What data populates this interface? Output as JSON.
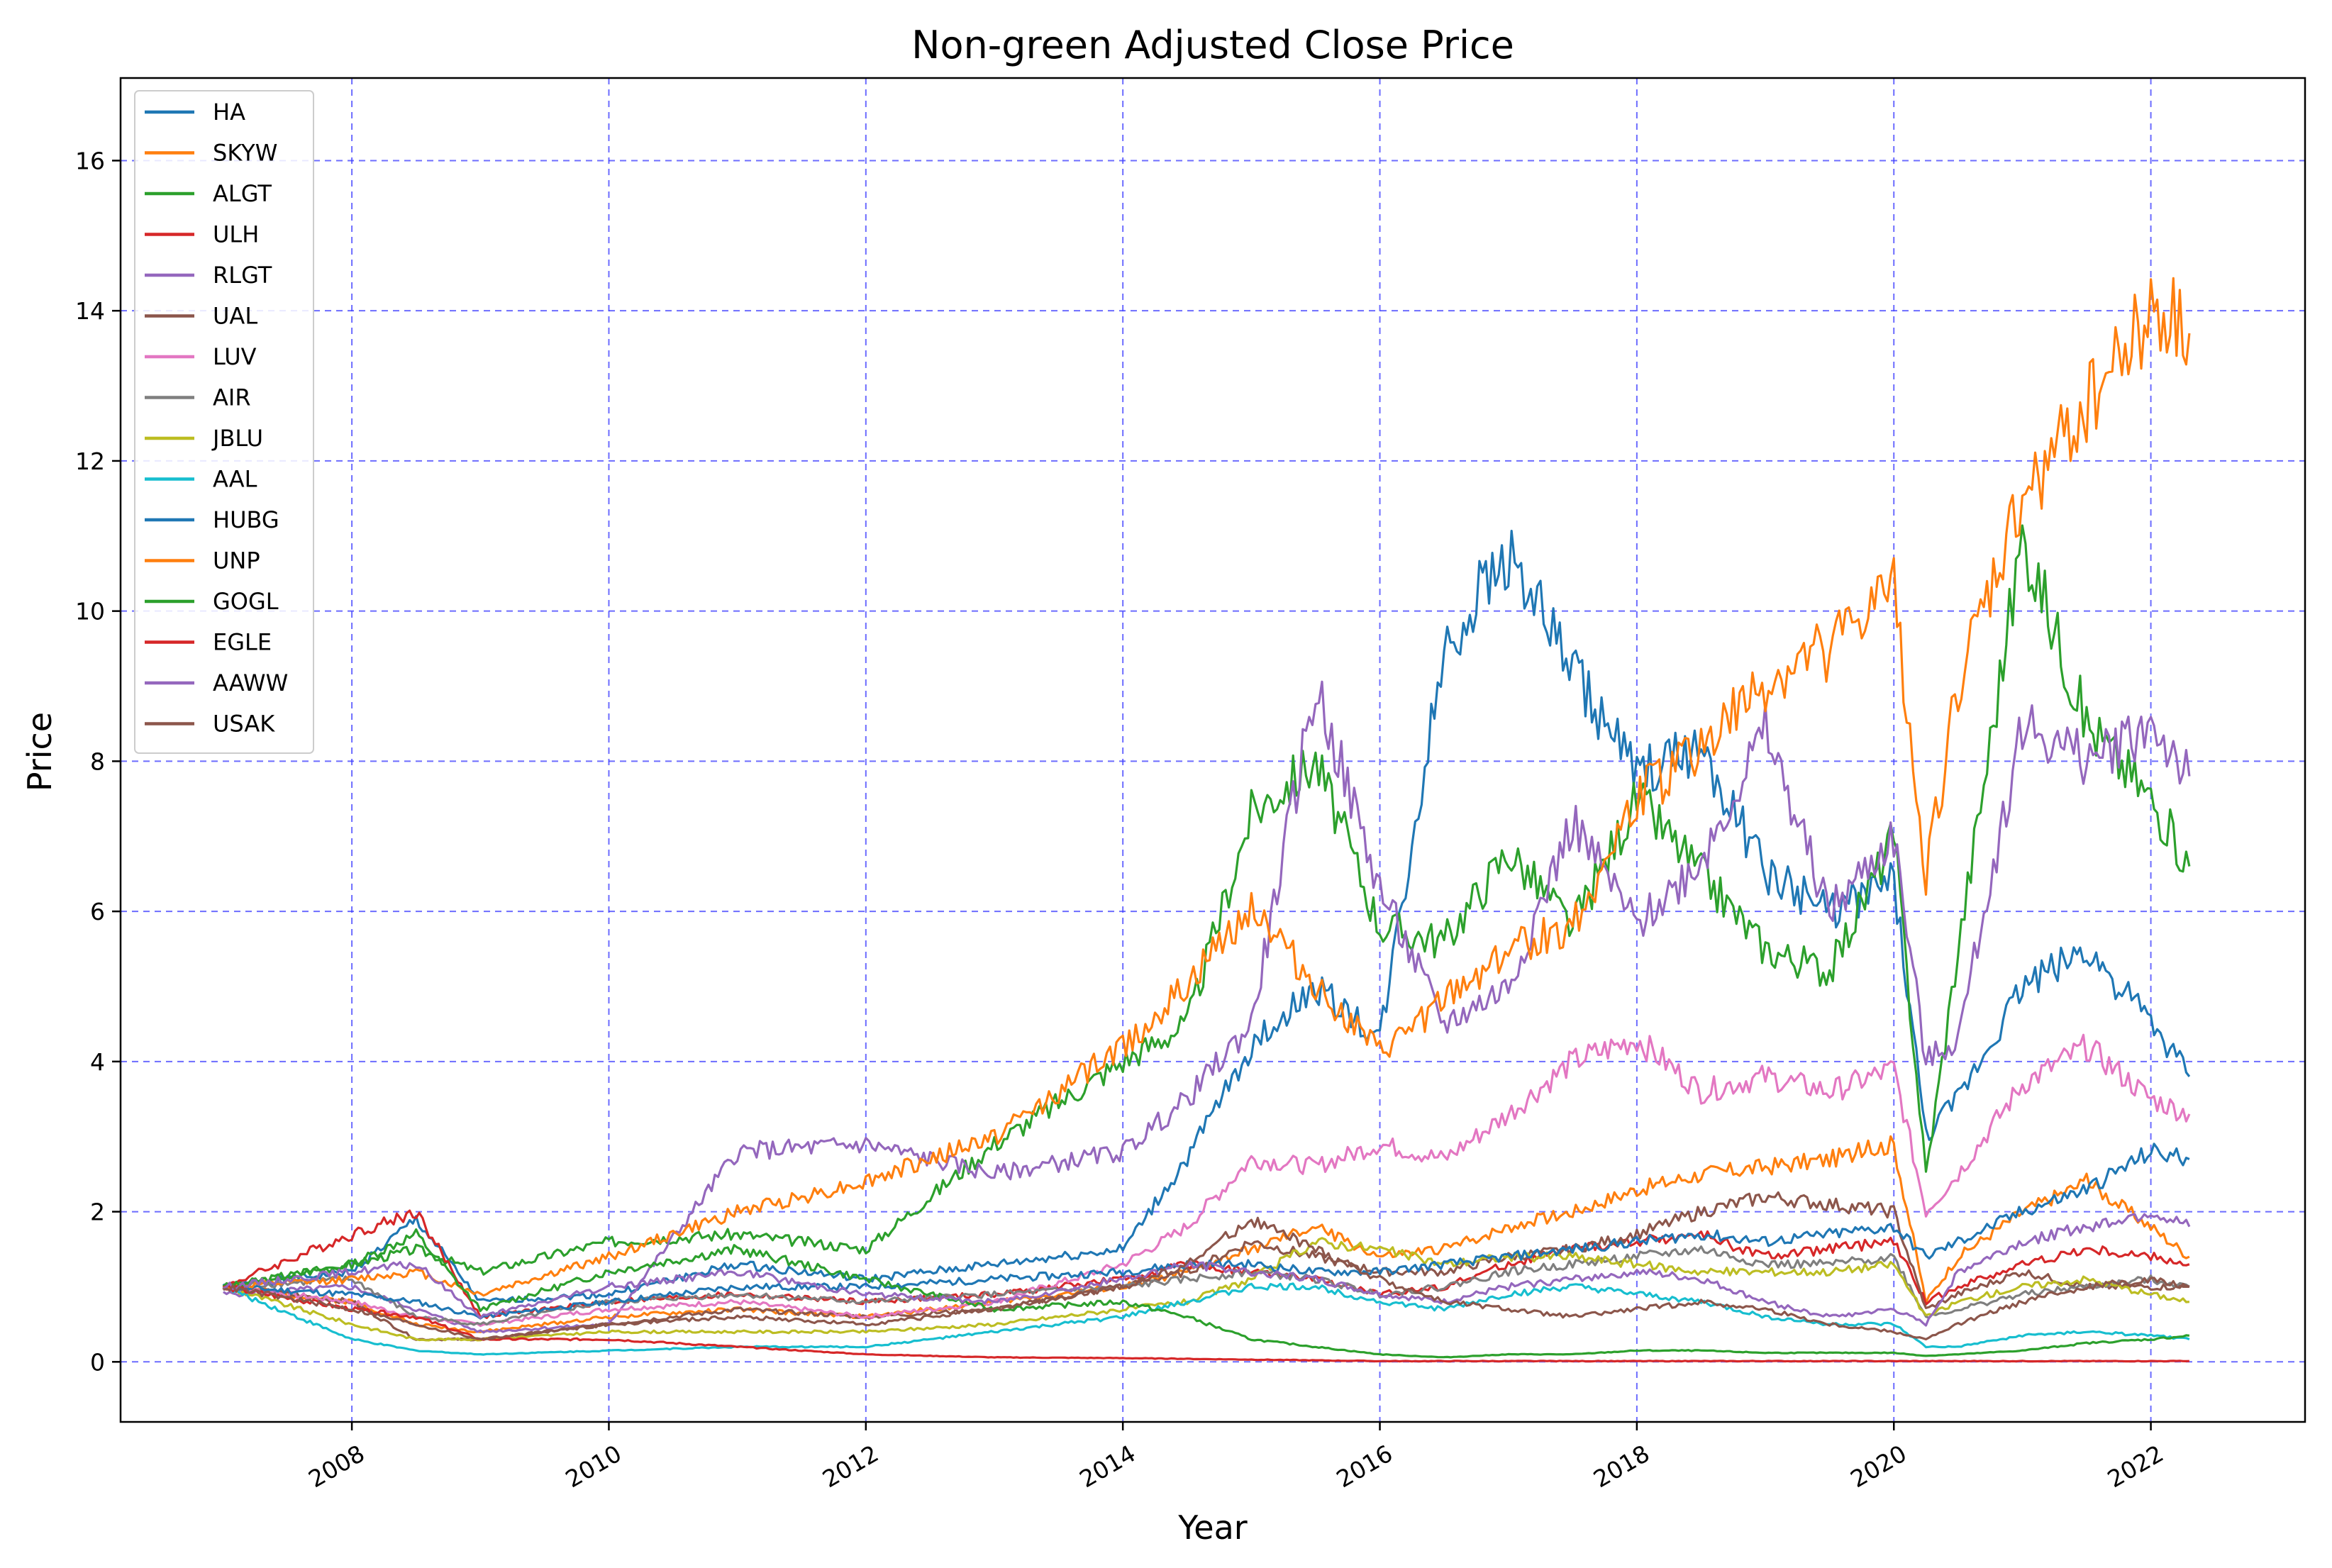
{
  "chart_data": {
    "type": "line",
    "title": "Non-green Adjusted Close Price",
    "xlabel": "Year",
    "ylabel": "Price",
    "xlim": [
      2006.2,
      2023.2
    ],
    "ylim": [
      -0.8,
      17.1
    ],
    "x_ticks": [
      2008,
      2010,
      2012,
      2014,
      2016,
      2018,
      2020,
      2022
    ],
    "y_ticks": [
      0,
      2,
      4,
      6,
      8,
      10,
      12,
      14,
      16
    ],
    "grid": true,
    "legend_position": "upper-left",
    "x_years": [
      2007.0,
      2008.0,
      2008.5,
      2009.0,
      2010.0,
      2011.0,
      2012.0,
      2013.0,
      2014.0,
      2014.5,
      2015.0,
      2015.5,
      2016.0,
      2016.5,
      2017.0,
      2017.5,
      2018.0,
      2018.5,
      2019.0,
      2019.5,
      2020.0,
      2020.25,
      2020.5,
      2021.0,
      2021.5,
      2022.0,
      2022.3
    ],
    "series": [
      {
        "name": "HA",
        "color": "#1f77b4",
        "values": [
          1.0,
          1.2,
          1.9,
          0.8,
          0.9,
          1.3,
          1.1,
          1.3,
          1.5,
          2.7,
          4.2,
          5.0,
          4.3,
          9.5,
          10.8,
          9.2,
          7.8,
          8.2,
          6.5,
          6.0,
          6.4,
          3.0,
          3.5,
          5.0,
          5.5,
          4.5,
          3.8
        ]
      },
      {
        "name": "SKYW",
        "color": "#ff7f0e",
        "values": [
          1.0,
          0.8,
          0.5,
          0.4,
          0.6,
          0.7,
          0.6,
          0.8,
          1.0,
          1.2,
          1.5,
          1.8,
          1.4,
          1.5,
          1.8,
          2.0,
          2.3,
          2.5,
          2.6,
          2.7,
          2.9,
          0.8,
          1.4,
          2.0,
          2.4,
          1.8,
          1.4
        ]
      },
      {
        "name": "ALGT",
        "color": "#2ca02c",
        "values": [
          1.0,
          1.3,
          1.5,
          1.2,
          1.6,
          1.7,
          1.5,
          2.9,
          4.0,
          4.5,
          7.3,
          8.0,
          5.8,
          5.6,
          6.8,
          5.8,
          7.5,
          6.5,
          5.5,
          5.2,
          7.0,
          2.5,
          5.5,
          11.0,
          8.5,
          7.5,
          6.6
        ]
      },
      {
        "name": "ULH",
        "color": "#d62728",
        "values": [
          1.0,
          1.7,
          2.0,
          0.6,
          0.8,
          0.9,
          0.8,
          0.9,
          1.1,
          1.3,
          1.2,
          1.1,
          0.9,
          1.0,
          1.3,
          1.5,
          1.6,
          1.7,
          1.4,
          1.5,
          1.6,
          0.8,
          1.0,
          1.3,
          1.5,
          1.4,
          1.3
        ]
      },
      {
        "name": "RLGT",
        "color": "#9467bd",
        "values": [
          0.9,
          1.0,
          0.7,
          0.4,
          0.5,
          2.8,
          2.9,
          2.5,
          2.8,
          3.5,
          4.5,
          9.0,
          6.3,
          4.5,
          5.0,
          7.2,
          5.8,
          6.7,
          8.4,
          6.0,
          7.0,
          4.0,
          4.3,
          8.5,
          8.0,
          8.5,
          7.8
        ]
      },
      {
        "name": "UAL",
        "color": "#8c564b",
        "values": [
          1.0,
          0.8,
          0.3,
          0.3,
          0.5,
          0.7,
          0.6,
          0.7,
          1.0,
          1.2,
          1.6,
          1.4,
          1.2,
          1.2,
          1.4,
          1.5,
          1.7,
          2.0,
          2.2,
          2.1,
          2.0,
          0.7,
          0.9,
          1.2,
          1.0,
          1.0,
          1.0
        ]
      },
      {
        "name": "LUV",
        "color": "#e377c2",
        "values": [
          1.0,
          0.8,
          0.6,
          0.5,
          0.7,
          0.8,
          0.6,
          0.8,
          1.3,
          1.8,
          2.7,
          2.6,
          2.9,
          2.7,
          3.3,
          4.0,
          4.3,
          3.6,
          3.8,
          3.6,
          3.9,
          2.0,
          2.5,
          3.7,
          4.2,
          3.5,
          3.3
        ]
      },
      {
        "name": "AIR",
        "color": "#7f7f7f",
        "values": [
          1.0,
          1.1,
          0.6,
          0.5,
          0.8,
          0.9,
          0.8,
          0.9,
          1.0,
          1.1,
          1.2,
          1.1,
          0.9,
          1.0,
          1.2,
          1.3,
          1.4,
          1.5,
          1.3,
          1.3,
          1.4,
          0.6,
          0.7,
          0.9,
          1.0,
          1.1,
          1.0
        ]
      },
      {
        "name": "JBLU",
        "color": "#bcbd22",
        "values": [
          1.0,
          0.5,
          0.3,
          0.3,
          0.4,
          0.4,
          0.4,
          0.5,
          0.7,
          0.8,
          1.1,
          1.6,
          1.5,
          1.3,
          1.4,
          1.4,
          1.3,
          1.2,
          1.2,
          1.2,
          1.3,
          0.6,
          0.8,
          1.0,
          1.1,
          0.9,
          0.8
        ]
      },
      {
        "name": "AAL",
        "color": "#17becf",
        "values": [
          1.0,
          0.3,
          0.15,
          0.1,
          0.15,
          0.2,
          0.2,
          0.4,
          0.6,
          0.8,
          1.0,
          1.0,
          0.8,
          0.7,
          0.9,
          1.0,
          0.9,
          0.8,
          0.6,
          0.5,
          0.5,
          0.2,
          0.2,
          0.35,
          0.4,
          0.35,
          0.3
        ]
      },
      {
        "name": "HUBG",
        "color": "#1f77b4",
        "values": [
          1.0,
          0.9,
          0.8,
          0.6,
          0.8,
          1.0,
          1.0,
          1.1,
          1.2,
          1.3,
          1.3,
          1.2,
          1.2,
          1.3,
          1.4,
          1.5,
          1.6,
          1.7,
          1.6,
          1.7,
          1.8,
          1.4,
          1.6,
          2.0,
          2.3,
          2.8,
          2.7
        ]
      },
      {
        "name": "UNP",
        "color": "#ff7f0e",
        "values": [
          1.0,
          1.1,
          1.2,
          0.9,
          1.4,
          2.0,
          2.4,
          3.0,
          4.2,
          5.0,
          6.1,
          5.0,
          4.1,
          4.8,
          5.5,
          5.8,
          7.5,
          8.2,
          9.0,
          9.5,
          10.3,
          6.5,
          9.0,
          11.5,
          12.8,
          14.0,
          13.7
        ]
      },
      {
        "name": "GOGL",
        "color": "#2ca02c",
        "values": [
          1.0,
          1.3,
          1.7,
          0.7,
          1.2,
          1.5,
          1.1,
          0.7,
          0.8,
          0.6,
          0.3,
          0.2,
          0.1,
          0.06,
          0.1,
          0.1,
          0.15,
          0.15,
          0.12,
          0.12,
          0.12,
          0.08,
          0.1,
          0.15,
          0.25,
          0.3,
          0.35
        ]
      },
      {
        "name": "EGLE",
        "color": "#d62728",
        "values": [
          1.0,
          0.7,
          0.6,
          0.3,
          0.3,
          0.2,
          0.1,
          0.06,
          0.05,
          0.04,
          0.03,
          0.02,
          0.01,
          0.01,
          0.01,
          0.01,
          0.01,
          0.01,
          0.01,
          0.01,
          0.01,
          0.01,
          0.01,
          0.01,
          0.01,
          0.01,
          0.01
        ]
      },
      {
        "name": "AAWW",
        "color": "#9467bd",
        "values": [
          1.0,
          1.2,
          1.3,
          0.6,
          1.0,
          1.2,
          0.9,
          0.8,
          1.1,
          1.3,
          1.2,
          1.1,
          0.9,
          0.8,
          1.0,
          1.1,
          1.2,
          1.1,
          0.8,
          0.6,
          0.7,
          0.5,
          1.2,
          1.6,
          1.8,
          2.0,
          1.8
        ]
      },
      {
        "name": "USAK",
        "color": "#8c564b",
        "values": [
          1.0,
          0.7,
          0.5,
          0.3,
          0.5,
          0.6,
          0.5,
          0.7,
          1.0,
          1.3,
          1.9,
          1.5,
          1.1,
          0.8,
          0.7,
          0.6,
          0.7,
          0.8,
          0.7,
          0.5,
          0.4,
          0.3,
          0.5,
          0.8,
          1.0,
          1.1,
          1.0
        ]
      }
    ]
  }
}
